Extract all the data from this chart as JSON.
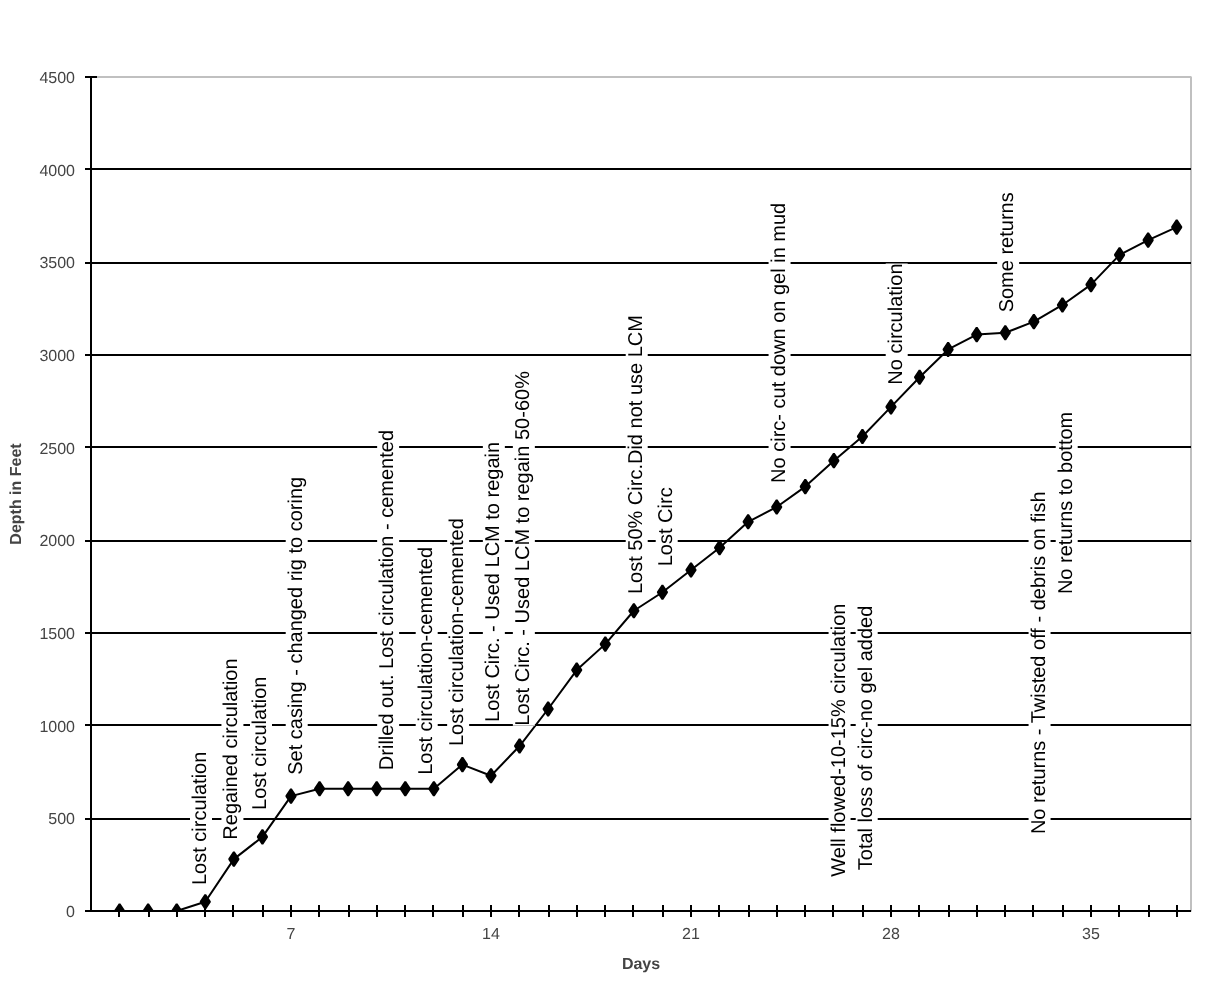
{
  "chart_data": {
    "type": "line",
    "xlabel": "Days",
    "ylabel": "Depth in Feet",
    "x": [
      1,
      2,
      3,
      4,
      5,
      6,
      7,
      8,
      9,
      10,
      11,
      12,
      13,
      14,
      15,
      16,
      17,
      18,
      19,
      20,
      21,
      22,
      23,
      24,
      25,
      26,
      27,
      28,
      29,
      30,
      31,
      32,
      33,
      34,
      35,
      36,
      37,
      38
    ],
    "series": [
      {
        "color": "#000000",
        "values": [
          0,
          0,
          0,
          50,
          280,
          400,
          620,
          660,
          660,
          660,
          660,
          660,
          790,
          730,
          890,
          1090,
          1300,
          1440,
          1620,
          1720,
          1840,
          1960,
          2100,
          2180,
          2290,
          2430,
          2560,
          2720,
          2880,
          3030,
          3110,
          3120,
          3180,
          3270,
          3380,
          3540,
          3620,
          3690
        ]
      }
    ],
    "xlim": [
      0,
      38.5
    ],
    "xticks": [
      {
        "value": 1,
        "label": null
      },
      {
        "value": 2,
        "label": null
      },
      {
        "value": 3,
        "label": null
      },
      {
        "value": 4,
        "label": null
      },
      {
        "value": 5,
        "label": null
      },
      {
        "value": 6,
        "label": null
      },
      7,
      {
        "value": 8,
        "label": null
      },
      {
        "value": 9,
        "label": null
      },
      {
        "value": 10,
        "label": null
      },
      {
        "value": 11,
        "label": null
      },
      {
        "value": 12,
        "label": null
      },
      {
        "value": 13,
        "label": null
      },
      14,
      {
        "value": 15,
        "label": null
      },
      {
        "value": 16,
        "label": null
      },
      {
        "value": 17,
        "label": null
      },
      {
        "value": 18,
        "label": null
      },
      {
        "value": 19,
        "label": null
      },
      {
        "value": 20,
        "label": null
      },
      21,
      {
        "value": 22,
        "label": null
      },
      {
        "value": 23,
        "label": null
      },
      {
        "value": 24,
        "label": null
      },
      {
        "value": 25,
        "label": null
      },
      {
        "value": 26,
        "label": null
      },
      {
        "value": 27,
        "label": null
      },
      28,
      {
        "value": 29,
        "label": null
      },
      {
        "value": 30,
        "label": null
      },
      {
        "value": 31,
        "label": null
      },
      {
        "value": 32,
        "label": null
      },
      {
        "value": 33,
        "label": null
      },
      {
        "value": 34,
        "label": null
      },
      35,
      {
        "value": 36,
        "label": null
      },
      {
        "value": 37,
        "label": null
      },
      {
        "value": 38,
        "label": null
      }
    ],
    "ylim": [
      0,
      4500
    ],
    "yticks": [
      0,
      500,
      1000,
      1500,
      2000,
      2500,
      3000,
      3500,
      4000,
      4500
    ],
    "grid": "y",
    "marker": "diamond",
    "line_style": "solid",
    "annotations": [
      "Lost circulation",
      "Regained circulation",
      "Lost circulation",
      "Set casing - changed rig to coring",
      "Drilled out. Lost circulation - cemented",
      "Lost circulation-cemented",
      "Lost circulation-cemented",
      "Lost Circ. - Used LCM to regain",
      "Lost Circ. - Used LCM to regain 50-60%",
      "Lost 50% Circ.Did not use LCM",
      "Lost Circ",
      "No circ- cut down on gel in mud",
      "Well flowed-10-15% circulation",
      "Total loss of circ-no gel added",
      "No circulation",
      "Some returns",
      "No returns - Twisted off - debris on fish",
      "No returns to bottom"
    ]
  }
}
